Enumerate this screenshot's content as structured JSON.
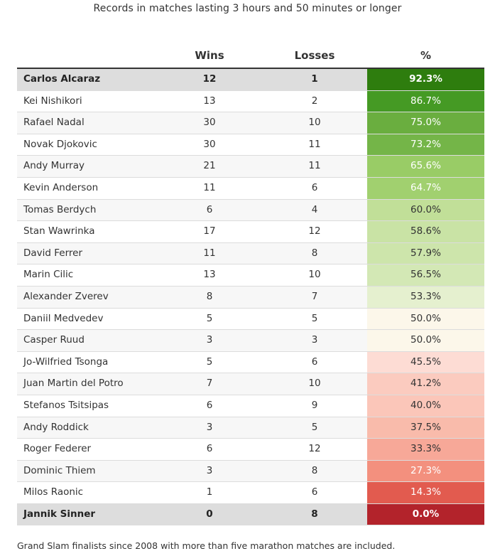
{
  "subtitle": "Records in matches lasting 3 hours and 50 minutes or longer",
  "footnote": "Grand Slam finalists since 2008 with more than five marathon matches are included.",
  "chart_data": {
    "type": "table",
    "title": "",
    "columns": [
      "",
      "Wins",
      "Losses",
      "%"
    ],
    "rows": [
      {
        "player": "Carlos Alcaraz",
        "wins": 12,
        "losses": 1,
        "pct": "92.3%",
        "color": "#2e7d0e",
        "highlight": true
      },
      {
        "player": "Kei Nishikori",
        "wins": 13,
        "losses": 2,
        "pct": "86.7%",
        "color": "#459a24",
        "highlight": false
      },
      {
        "player": "Rafael Nadal",
        "wins": 30,
        "losses": 10,
        "pct": "75.0%",
        "color": "#6aae3f",
        "highlight": false
      },
      {
        "player": "Novak Djokovic",
        "wins": 30,
        "losses": 11,
        "pct": "73.2%",
        "color": "#74b548",
        "highlight": false
      },
      {
        "player": "Andy Murray",
        "wins": 21,
        "losses": 11,
        "pct": "65.6%",
        "color": "#99cc66",
        "highlight": false
      },
      {
        "player": "Kevin Anderson",
        "wins": 11,
        "losses": 6,
        "pct": "64.7%",
        "color": "#a1d06f",
        "highlight": false
      },
      {
        "player": "Tomas Berdych",
        "wins": 6,
        "losses": 4,
        "pct": "60.0%",
        "color": "#c1df98",
        "highlight": false
      },
      {
        "player": "Stan Wawrinka",
        "wins": 17,
        "losses": 12,
        "pct": "58.6%",
        "color": "#c9e3a5",
        "highlight": false
      },
      {
        "player": "David Ferrer",
        "wins": 11,
        "losses": 8,
        "pct": "57.9%",
        "color": "#cde5ab",
        "highlight": false
      },
      {
        "player": "Marin Cilic",
        "wins": 13,
        "losses": 10,
        "pct": "56.5%",
        "color": "#d3e8b5",
        "highlight": false
      },
      {
        "player": "Alexander Zverev",
        "wins": 8,
        "losses": 7,
        "pct": "53.3%",
        "color": "#e5f0cf",
        "highlight": false
      },
      {
        "player": "Daniil Medvedev",
        "wins": 5,
        "losses": 5,
        "pct": "50.0%",
        "color": "#fcf7ea",
        "highlight": false
      },
      {
        "player": "Casper Ruud",
        "wins": 3,
        "losses": 3,
        "pct": "50.0%",
        "color": "#fcf7ea",
        "highlight": false
      },
      {
        "player": "Jo-Wilfried Tsonga",
        "wins": 5,
        "losses": 6,
        "pct": "45.5%",
        "color": "#fddcd4",
        "highlight": false
      },
      {
        "player": "Juan Martin del Potro",
        "wins": 7,
        "losses": 10,
        "pct": "41.2%",
        "color": "#fbcbbf",
        "highlight": false
      },
      {
        "player": "Stefanos Tsitsipas",
        "wins": 6,
        "losses": 9,
        "pct": "40.0%",
        "color": "#fbc6b9",
        "highlight": false
      },
      {
        "player": "Andy Roddick",
        "wins": 3,
        "losses": 5,
        "pct": "37.5%",
        "color": "#f9bbab",
        "highlight": false
      },
      {
        "player": "Roger Federer",
        "wins": 6,
        "losses": 12,
        "pct": "33.3%",
        "color": "#f7a898",
        "highlight": false
      },
      {
        "player": "Dominic Thiem",
        "wins": 3,
        "losses": 8,
        "pct": "27.3%",
        "color": "#f3907e",
        "highlight": false
      },
      {
        "player": "Milos Raonic",
        "wins": 1,
        "losses": 6,
        "pct": "14.3%",
        "color": "#e25b4f",
        "highlight": false
      },
      {
        "player": "Jannik Sinner",
        "wins": 0,
        "losses": 8,
        "pct": "0.0%",
        "color": "#b3232b",
        "highlight": true
      }
    ]
  }
}
